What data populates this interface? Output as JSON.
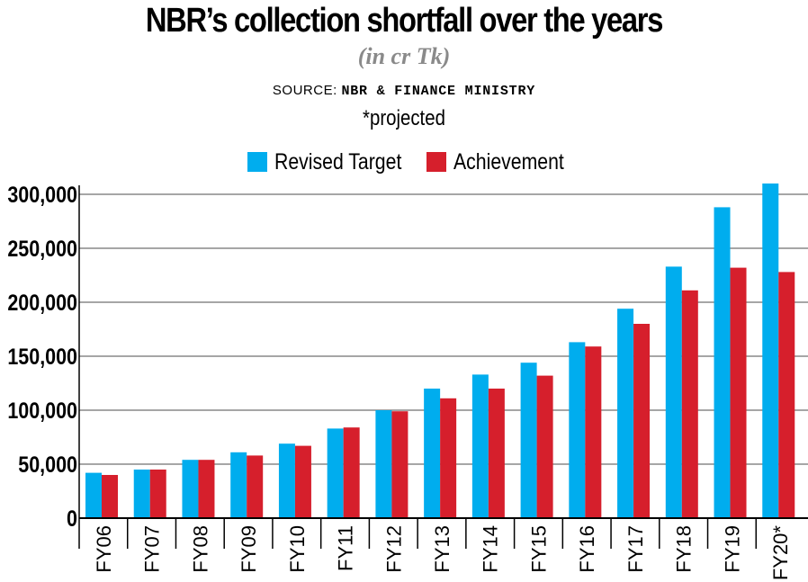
{
  "title": "NBR’s collection shortfall over the years",
  "subtitle": "(in cr Tk)",
  "source_prefix": "SOURCE:",
  "source_name": "NBR & FINANCE MINISTRY",
  "note": "*projected",
  "colors": {
    "revised_target": "#00adee",
    "achievement": "#d61f2c",
    "grid": "#a6a6a6"
  },
  "chart_data": {
    "type": "bar",
    "title": "NBR’s collection shortfall over the years",
    "ylabel": "in cr Tk",
    "ylim": [
      0,
      300000
    ],
    "yticks": [
      0,
      50000,
      100000,
      150000,
      200000,
      250000,
      300000
    ],
    "ytick_labels": [
      "0",
      "50,000",
      "100,000",
      "150,000",
      "200,000",
      "250,000",
      "300,000"
    ],
    "categories": [
      "FY06",
      "FY07",
      "FY08",
      "FY09",
      "FY10",
      "FY11",
      "FY12",
      "FY13",
      "FY14",
      "FY15",
      "FY16",
      "FY17",
      "FY18",
      "FY19",
      "FY20*"
    ],
    "legend_position": "top-center",
    "grid": true,
    "series": [
      {
        "name": "Revised Target",
        "values": [
          42000,
          45000,
          54000,
          61000,
          69000,
          83000,
          100000,
          120000,
          133000,
          144000,
          163000,
          194000,
          233000,
          288000,
          310000
        ]
      },
      {
        "name": "Achievement",
        "values": [
          40000,
          45000,
          54000,
          58000,
          67000,
          84000,
          99000,
          111000,
          120000,
          132000,
          159000,
          180000,
          211000,
          232000,
          228000
        ]
      }
    ]
  }
}
